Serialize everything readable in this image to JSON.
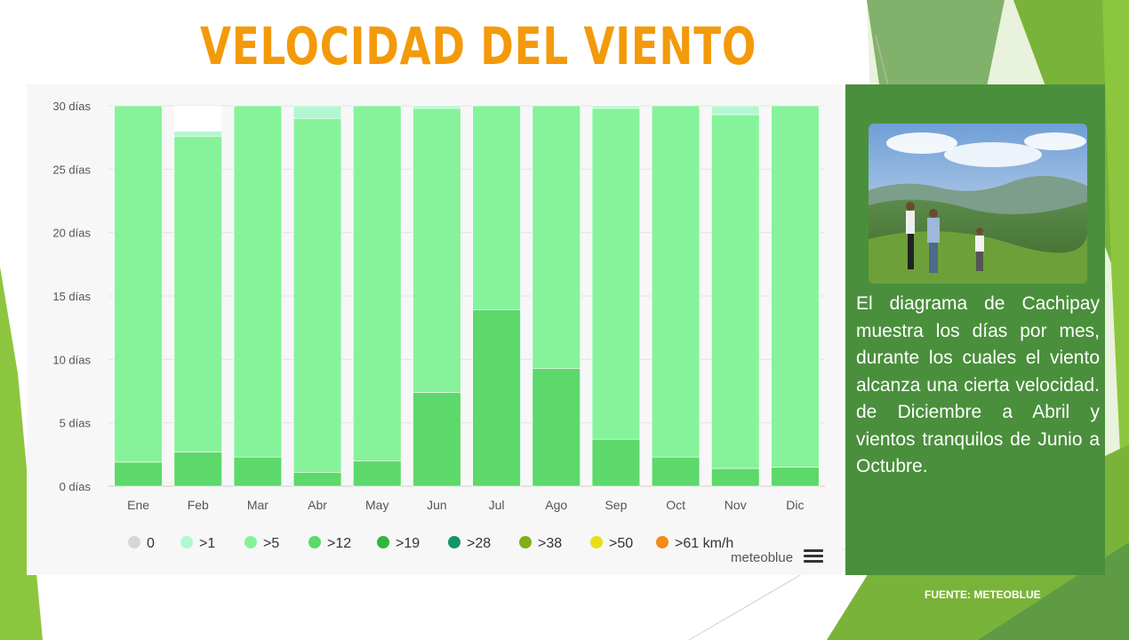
{
  "title": "VELOCIDAD DEL VIENTO",
  "colors": {
    "title": "#f39a0b",
    "green_bar_light": "#86f39b",
    "green_bar_mid": "#5cd96a",
    "panel": "#4a8f3c"
  },
  "chart_data": {
    "type": "bar",
    "stacked": true,
    "categories": [
      "Ene",
      "Feb",
      "Mar",
      "Abr",
      "May",
      "Jun",
      "Jul",
      "Ago",
      "Sep",
      "Oct",
      "Nov",
      "Dic"
    ],
    "y_ticks": [
      "0 días",
      "5 días",
      "10 días",
      "15 días",
      "20 días",
      "25 días",
      "30 días"
    ],
    "y_tick_values": [
      0,
      5,
      10,
      15,
      20,
      25,
      30
    ],
    "ylim": [
      0,
      30
    ],
    "grid": true,
    "legend_position": "bottom",
    "series": [
      {
        "name": ">12",
        "color": "#5cd96a",
        "values": [
          1.9,
          2.7,
          2.3,
          1.1,
          2.0,
          7.4,
          13.9,
          9.3,
          3.7,
          2.3,
          1.4,
          1.5
        ]
      },
      {
        "name": ">5",
        "color": "#86f39b",
        "values": [
          28.1,
          24.9,
          27.7,
          27.9,
          28.0,
          22.4,
          16.1,
          20.7,
          26.1,
          27.7,
          27.9,
          28.5
        ]
      },
      {
        "name": ">1",
        "color": "#b3f7d2",
        "values": [
          0,
          0.4,
          0,
          1.0,
          0,
          0.2,
          0,
          0,
          0.2,
          0,
          0.7,
          0
        ]
      }
    ],
    "legend": [
      {
        "label": "0",
        "color": "#d6d6d6"
      },
      {
        "label": ">1",
        "color": "#b3f7d2"
      },
      {
        "label": ">5",
        "color": "#86f39b"
      },
      {
        "label": ">12",
        "color": "#5cd96a"
      },
      {
        "label": ">19",
        "color": "#2fb73a"
      },
      {
        "label": ">28",
        "color": "#12946a"
      },
      {
        "label": ">38",
        "color": "#82b014"
      },
      {
        "label": ">50",
        "color": "#e8df19"
      },
      {
        "label": ">61 km/h",
        "color": "#f28d16"
      }
    ]
  },
  "brand": "meteoblue",
  "side_text": "El diagrama de Cachipay muestra los días por mes, durante los cuales el viento alcanza una cierta velocidad. de Diciembre a Abril y vientos tranquilos de Junio a Octubre.",
  "source": "FUENTE: METEOBLUE"
}
